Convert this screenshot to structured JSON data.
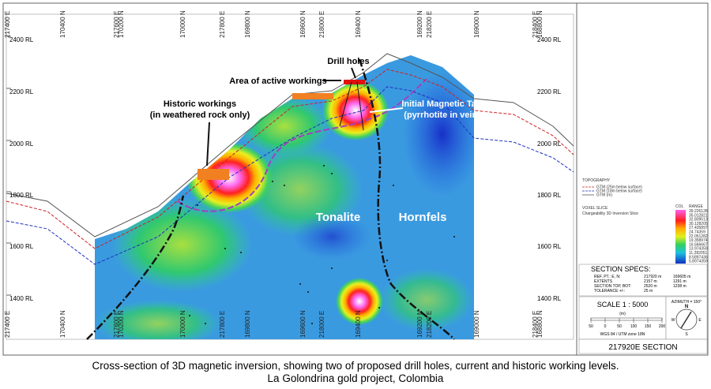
{
  "section": {
    "rl_labels": [
      "2400 RL",
      "2200 RL",
      "2000 RL",
      "1800 RL",
      "1600 RL",
      "1400 RL"
    ],
    "grid_labels": [
      "217400 E",
      "170400 N",
      "217600 E",
      "170200 N",
      "170000 N",
      "217800 E",
      "169800 N",
      "169600 N",
      "218000 E",
      "169400 N",
      "169200 N",
      "218200 E",
      "169000 N",
      "218400 E",
      "168800 N"
    ],
    "annotations": {
      "drill_holes": "Drill holes",
      "active_workings": "Area of active workings",
      "historic_workings": [
        "Historic workings",
        "(in weathered rock only)"
      ],
      "target": [
        "Initial Magnetic Target",
        "(pyrrhotite in veins?)"
      ],
      "tonalite": "Tonalite",
      "hornfels": "Hornfels"
    }
  },
  "legend": {
    "topography": "TOPOGRAPHY",
    "lines": [
      "GTM (25m below surface)",
      "GTM (18m below surface)",
      "GTM (m)"
    ],
    "voxel_title": "VOXEL SLICE",
    "voxel_name": "Chargeability 3D Inversion Slice",
    "col_header": "COL",
    "range_header": "RANGE",
    "ranges": [
      "39.226128",
      "35.012821",
      "32.809513",
      "30.128205",
      "27.435897",
      "24.74359",
      "22.051282",
      "19.358974",
      "16.666667",
      "13.974359",
      "11.282051",
      "8.5897436",
      "5.8974359"
    ]
  },
  "specs": {
    "title": "SECTION SPECS:",
    "rows": [
      [
        "REF. PT.: E, N:",
        "217920 m",
        "169605 m"
      ],
      [
        "EXTENTS",
        "2157 m",
        "1291 m"
      ],
      [
        "SECTION TOP, BOT:",
        "2520 m",
        "1238 m"
      ],
      [
        "TOLERANCE +/-:",
        "25 m",
        ""
      ]
    ]
  },
  "scale": {
    "title": "SCALE  1 : 5000",
    "unit": "(m)",
    "ticks": [
      "50",
      "0",
      "50",
      "100",
      "150",
      "200"
    ],
    "datum": "WGS 84 / UTM zone 18N"
  },
  "azimuth": {
    "label": "AZIMUTH = 150°",
    "n": "N",
    "e": "E",
    "s": "S",
    "w": "W"
  },
  "section_title": "217920E SECTION",
  "caption": [
    "Cross-section of 3D magnetic inversion, showing two of proposed drill holes, current and historic working levels.",
    "La Golondrina gold project, Colombia"
  ]
}
